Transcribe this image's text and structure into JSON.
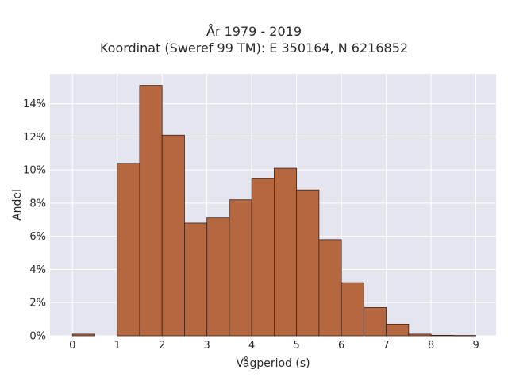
{
  "chart_data": {
    "type": "bar",
    "title": "År 1979 - 2019",
    "subtitle": "Koordinat (Sweref 99 TM): E 350164, N 6216852",
    "xlabel": "Vågperiod (s)",
    "ylabel": "Andel",
    "bin_width": 0.5,
    "bins": [
      {
        "x0": 0.0,
        "value": 0.1
      },
      {
        "x0": 0.5,
        "value": 0.0
      },
      {
        "x0": 1.0,
        "value": 10.4
      },
      {
        "x0": 1.5,
        "value": 15.1
      },
      {
        "x0": 2.0,
        "value": 12.1
      },
      {
        "x0": 2.5,
        "value": 6.8
      },
      {
        "x0": 3.0,
        "value": 7.1
      },
      {
        "x0": 3.5,
        "value": 8.2
      },
      {
        "x0": 4.0,
        "value": 9.5
      },
      {
        "x0": 4.5,
        "value": 10.1
      },
      {
        "x0": 5.0,
        "value": 8.8
      },
      {
        "x0": 5.5,
        "value": 5.8
      },
      {
        "x0": 6.0,
        "value": 3.2
      },
      {
        "x0": 6.5,
        "value": 1.7
      },
      {
        "x0": 7.0,
        "value": 0.7
      },
      {
        "x0": 7.5,
        "value": 0.1
      },
      {
        "x0": 8.0,
        "value": 0.03
      },
      {
        "x0": 8.5,
        "value": 0.02
      }
    ],
    "xlim": [
      -0.5,
      9.45
    ],
    "ylim": [
      0,
      15.8
    ],
    "xticks": [
      "0",
      "1",
      "2",
      "3",
      "4",
      "5",
      "6",
      "7",
      "8",
      "9"
    ],
    "yticks": [
      "0%",
      "2%",
      "4%",
      "6%",
      "8%",
      "10%",
      "12%",
      "14%"
    ],
    "grid": true,
    "colors": {
      "bar_fill": "#b5683f",
      "bar_edge": "#3d2014",
      "plot_bg": "#e5e5f0",
      "grid": "#ffffff"
    }
  }
}
